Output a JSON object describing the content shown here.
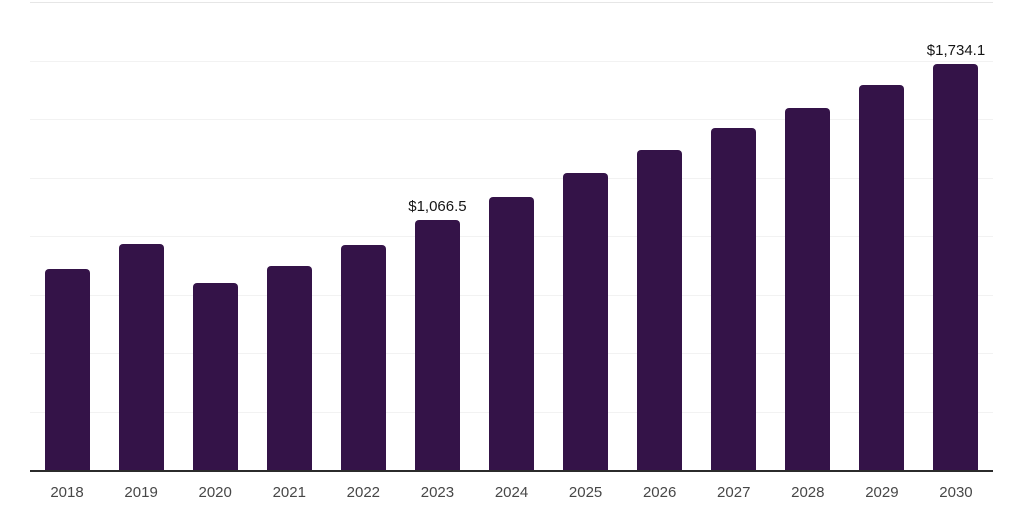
{
  "chart_data": {
    "type": "bar",
    "title": "",
    "xlabel": "",
    "ylabel": "",
    "categories": [
      "2018",
      "2019",
      "2020",
      "2021",
      "2022",
      "2023",
      "2024",
      "2025",
      "2026",
      "2027",
      "2028",
      "2029",
      "2030"
    ],
    "values": [
      858,
      967,
      801,
      870,
      961,
      1066.5,
      1166,
      1271,
      1368,
      1462,
      1547,
      1644,
      1734.1
    ],
    "value_labels": [
      {
        "category": "2023",
        "text": "$1,066.5"
      },
      {
        "category": "2030",
        "text": "$1,734.1"
      }
    ],
    "ylim": [
      0,
      2000
    ],
    "grid_step": 250,
    "grid_on": true,
    "legend_position": "none",
    "y_tick_labels_visible": false,
    "colors": {
      "bar": "#341348",
      "gridline": "#f2f2f2",
      "top_gridline": "#e6e6e6",
      "axis_line": "#2b2b2b",
      "tick_label": "#474747",
      "value_label": "#151515",
      "background": "#ffffff"
    }
  }
}
